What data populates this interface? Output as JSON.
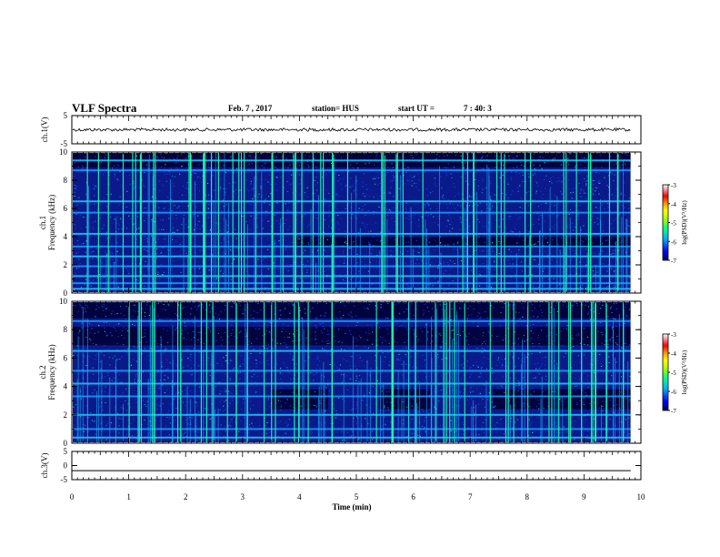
{
  "header": {
    "title": "VLF Spectra",
    "date": "Feb. 7 , 2017",
    "station": "station= HUS",
    "start_label": "start  UT  =",
    "start_value": "7 : 40: 3"
  },
  "colors": {
    "ink": "#000000",
    "spec_low": "#000033",
    "spec_mid": "#0022cc",
    "spec_high": "#22ffaa",
    "colorbar": [
      "#000050",
      "#0000ff",
      "#00aaff",
      "#00ff88",
      "#aaff00",
      "#ffff00",
      "#ff8800",
      "#ff0000",
      "#ff8888",
      "#ffffff"
    ]
  },
  "chart_data": [
    {
      "type": "line",
      "panel": "ch1-waveform",
      "ylabel": "ch.1(V)",
      "ylim": [
        -5,
        5
      ],
      "yticks": [
        "5",
        "-5"
      ],
      "xlim": [
        0,
        10
      ],
      "level": 0
    },
    {
      "type": "heatmap",
      "panel": "ch1-spectrogram",
      "ylabel_line1": "ch.1",
      "ylabel_line2": "Frequency (kHz)",
      "ylim": [
        0,
        10
      ],
      "yticks": [
        "0",
        "2",
        "4",
        "6",
        "8",
        "10"
      ],
      "xlim": [
        0,
        10
      ],
      "data_end_min": 9.82,
      "horizontal_bands_khz": [
        0.3,
        0.7,
        1.2,
        1.9,
        2.6,
        3.3,
        4.2,
        5.7,
        6.5,
        8.7,
        9.4
      ],
      "colorbar": {
        "label": "log(PSD)(V²/Hz)",
        "range": [
          -7,
          -3
        ],
        "ticks": [
          "-3",
          "-4",
          "-5",
          "-6",
          "-7"
        ]
      }
    },
    {
      "type": "heatmap",
      "panel": "ch2-spectrogram",
      "ylabel_line1": "ch.2",
      "ylabel_line2": "Frequency (kHz)",
      "ylim": [
        0,
        10
      ],
      "yticks": [
        "0",
        "2",
        "4",
        "6",
        "8",
        "10"
      ],
      "xlim": [
        0,
        10
      ],
      "data_end_min": 9.82,
      "horizontal_bands_khz": [
        0.4,
        1.0,
        2.0,
        3.3,
        4.2,
        5.1,
        6.5,
        8.6
      ],
      "colorbar": {
        "label": "log(PSD)(V²/Hz)",
        "range": [
          -7,
          -3
        ],
        "ticks": [
          "-3",
          "-4",
          "-5",
          "-6",
          "-7"
        ]
      }
    },
    {
      "type": "line",
      "panel": "ch3-waveform",
      "ylabel": "ch.3(V)",
      "ylim": [
        -5,
        5
      ],
      "yticks": [
        "5",
        "0",
        "-5"
      ],
      "xlim": [
        0,
        10
      ],
      "xlabel": "Time (min)",
      "xticks": [
        "0",
        "1",
        "2",
        "3",
        "4",
        "5",
        "6",
        "7",
        "8",
        "9",
        "10"
      ],
      "level": -1.8
    }
  ]
}
